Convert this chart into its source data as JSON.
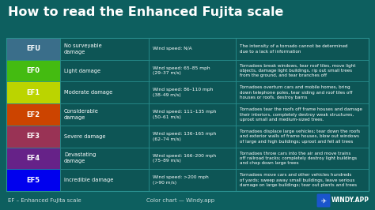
{
  "title": "How to read the Enhanced Fujita scale",
  "bg_color": "#0d5f5f",
  "table_bg": "#0d5555",
  "border_color": "#2a9090",
  "footer_text_left": "EF – Enhanced Fujita scale",
  "footer_text_mid": "Color chart — Windy.app",
  "footer_windy": "WINDY.APP",
  "rows": [
    {
      "label": "EFU",
      "label_color": "#3a6e8a",
      "damage": "No surveyable\ndamage",
      "wind": "Wind speed: N/A",
      "description": "The intensity of a tornado cannot be determined\ndue to a lack of information"
    },
    {
      "label": "EF0",
      "label_color": "#44bb11",
      "damage": "Light damage",
      "wind": "Wind speed: 65–85 mph\n(29–37 m/s)",
      "description": "Tornadoes break windows, tear roof tiles, move light\nobjects, damage light buildings, rip out small trees\nfrom the ground, and tear branches off"
    },
    {
      "label": "EF1",
      "label_color": "#bbd400",
      "damage": "Moderate damage",
      "wind": "Wind speed: 86–110 mph\n(38–49 m/s)",
      "description": "Tornadoes overturn cars and mobile homes, bring\ndown telephone poles, tear siding and roof tiles off\nhouses or roofs, destroy barns"
    },
    {
      "label": "EF2",
      "label_color": "#cc4400",
      "damage": "Considerable\ndamage",
      "wind": "Wind speed: 111–135 mph\n(50–61 m/s)",
      "description": "Tornadoes tear the roofs off frame houses and damage\ntheir interiors, completely destroy weak structures,\nuproot small and medium-sized trees."
    },
    {
      "label": "EF3",
      "label_color": "#993355",
      "damage": "Severe damage",
      "wind": "Wind speed: 136–165 mph\n(62–74 m/s)",
      "description": "Tornadoes displace large vehicles; tear down the roofs\nand exterior walls of frame houses, blow out windows\nof large and high buildings; uproot and fell all trees"
    },
    {
      "label": "EF4",
      "label_color": "#662288",
      "damage": "Devastating\ndamage",
      "wind": "Wind speed: 166–200 mph\n(75–89 m/s)",
      "description": "Tornadoes throw cars into the air and move trains\noff railroad tracks; completely destroy light buildings\nand chop down large trees"
    },
    {
      "label": "EF5",
      "label_color": "#0000ee",
      "damage": "Incredible damage",
      "wind": "Wind speed: >200 mph\n(>90 m/s)",
      "description": "Tornadoes move cars and other vehicles hundreds\nof yards; sweep away small buildings, leave serious\ndamage on large buildings; tear out plants and trees"
    }
  ]
}
